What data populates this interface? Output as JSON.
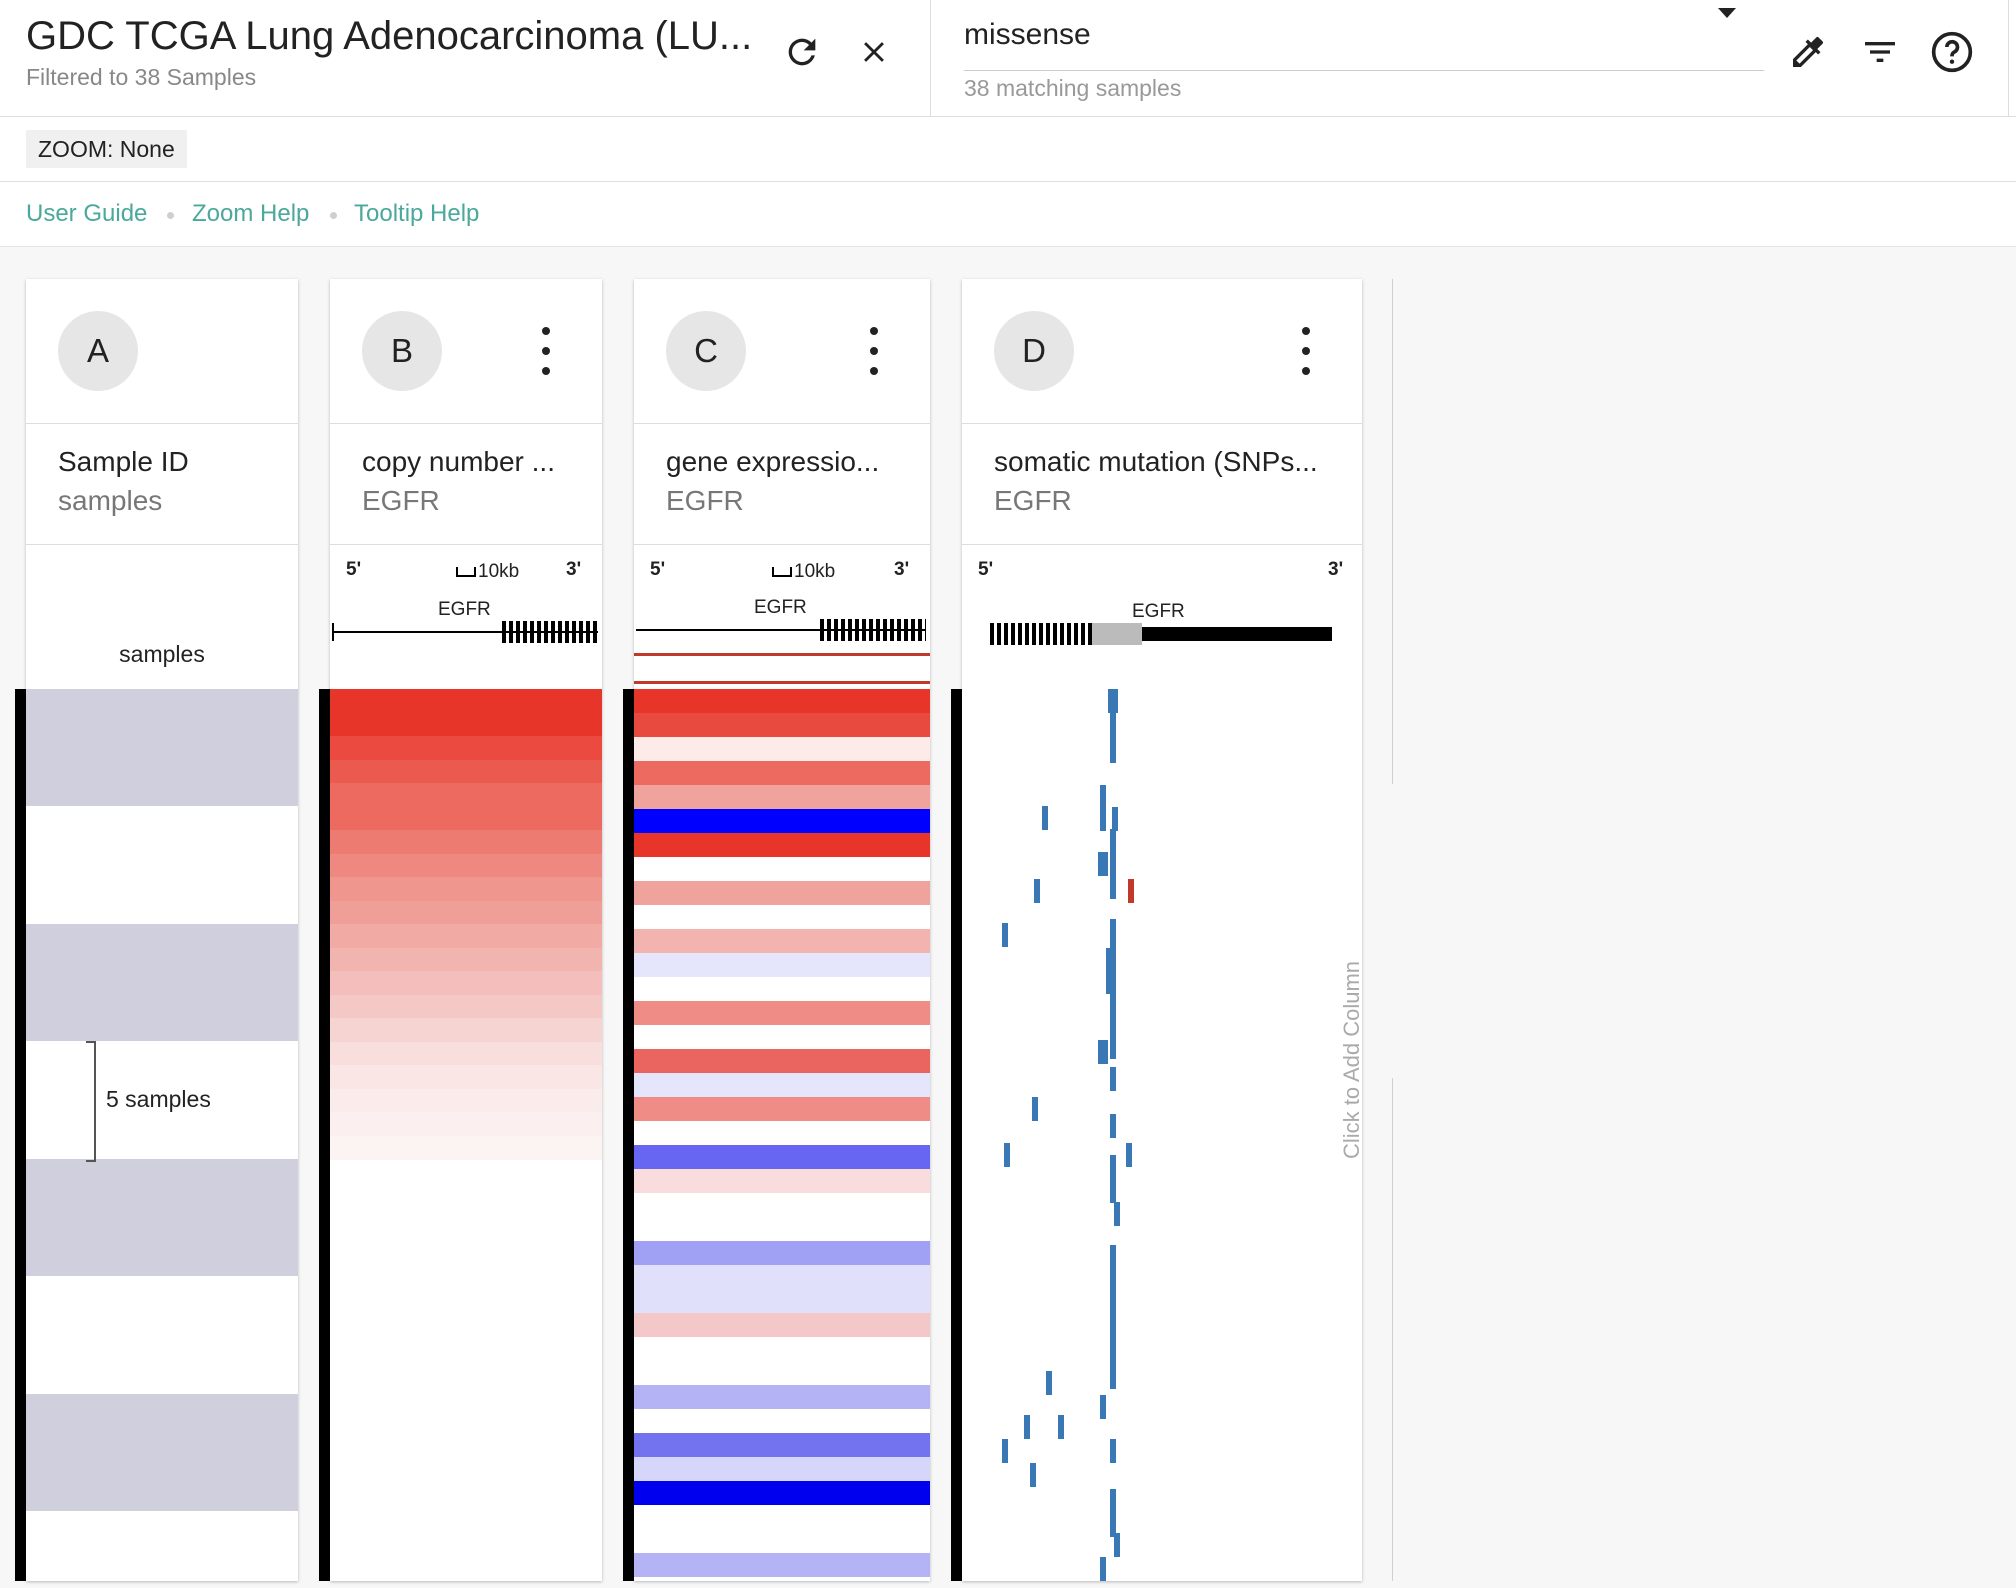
{
  "header": {
    "title": "GDC TCGA Lung Adenocarcinoma (LU...",
    "subtitle": "Filtered to 38 Samples",
    "search_value": "missense",
    "search_hint": "38 matching samples"
  },
  "zoom": {
    "label": "ZOOM: None"
  },
  "links": [
    "User Guide",
    "Zoom Help",
    "Tooltip Help"
  ],
  "columns": [
    {
      "letter": "A",
      "field": "Sample ID",
      "sub": "samples"
    },
    {
      "letter": "B",
      "field": "copy number ...",
      "sub": "EGFR"
    },
    {
      "letter": "C",
      "field": "gene expressio...",
      "sub": "EGFR"
    },
    {
      "letter": "D",
      "field": "somatic mutation (SNPs...",
      "sub": "EGFR"
    }
  ],
  "annotations": {
    "samples_label": "samples",
    "bracket_label": "5 samples",
    "gene": "EGFR",
    "five_prime": "5'",
    "three_prime": "3'",
    "scale_label": "10kb"
  },
  "add_column": "Click to Add Column",
  "colors": {
    "accent_link": "#4aa89c",
    "sample_band": "#cfcfdd",
    "mutation": "#3a78b5",
    "mutation_alt": "#c0392b"
  },
  "icons": [
    "refresh-icon",
    "close-icon",
    "eyedropper-icon",
    "filter-icon",
    "help-icon",
    "more-vert-icon"
  ]
}
